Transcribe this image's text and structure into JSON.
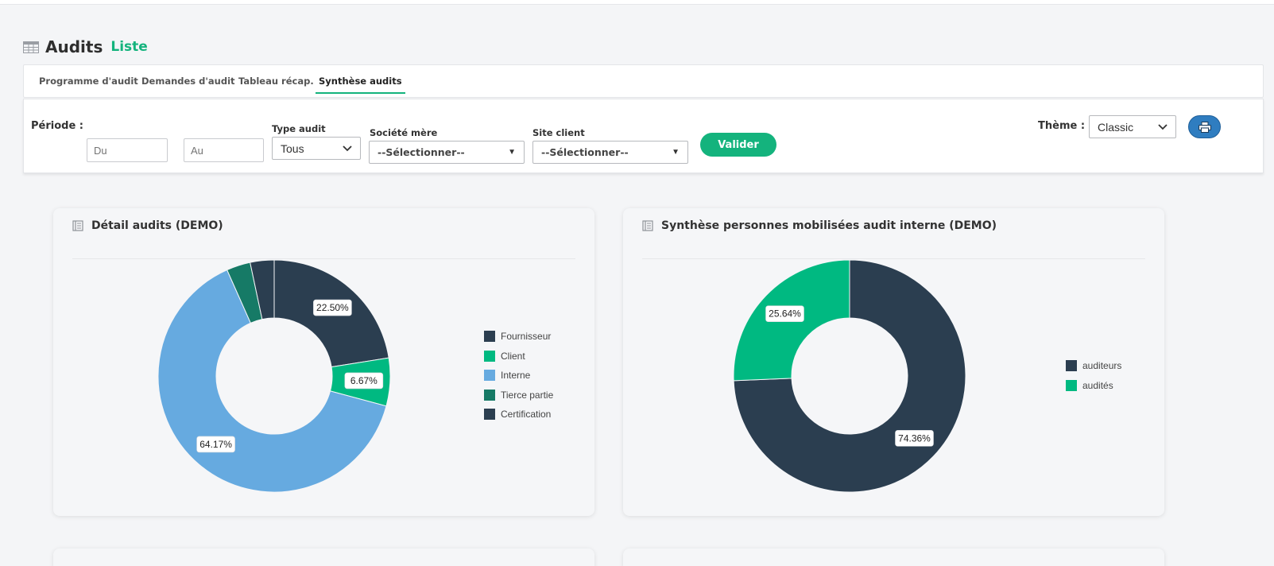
{
  "header": {
    "title": "Audits",
    "subtitle": "Liste",
    "icon": "table-icon"
  },
  "tabs": [
    {
      "label": "Programme d'audit",
      "active": false
    },
    {
      "label": "Demandes d'audit",
      "active": false
    },
    {
      "label": "Tableau récap.",
      "active": false
    },
    {
      "label": "Synthèse audits",
      "active": true
    }
  ],
  "filters": {
    "periode_label": "Période :",
    "du_placeholder": "Du",
    "au_placeholder": "Au",
    "type_audit_label": "Type audit",
    "type_audit_value": "Tous",
    "societe_label": "Société mère",
    "societe_value": "--Sélectionner--",
    "site_label": "Site client",
    "site_value": "--Sélectionner--",
    "valider_label": "Valider",
    "theme_label": "Thème :",
    "theme_value": "Classic",
    "print_icon": "printer-icon"
  },
  "colors": {
    "accent": "#14b37d",
    "dark": "#2b3e50",
    "blue": "#66aae0",
    "teal": "#167a66"
  },
  "chart_data": [
    {
      "type": "pie",
      "variant": "donut",
      "title": "Détail audits (DEMO)",
      "categories": [
        "Fournisseur",
        "Client",
        "Interne",
        "Tierce partie",
        "Certification"
      ],
      "values": [
        22.5,
        6.67,
        64.17,
        3.33,
        3.33
      ],
      "data_labels": [
        "22.50%",
        "6.67%",
        "64.17%",
        "",
        ""
      ],
      "colors": [
        "#2b3e50",
        "#00b981",
        "#66aae0",
        "#167a66",
        "#2b3e50"
      ],
      "legend_position": "right"
    },
    {
      "type": "pie",
      "variant": "donut",
      "title": "Synthèse personnes mobilisées audit interne (DEMO)",
      "categories": [
        "auditeurs",
        "audités"
      ],
      "values": [
        74.36,
        25.64
      ],
      "data_labels": [
        "74.36%",
        "25.64%"
      ],
      "colors": [
        "#2b3e50",
        "#00b981"
      ],
      "legend_position": "right"
    }
  ]
}
